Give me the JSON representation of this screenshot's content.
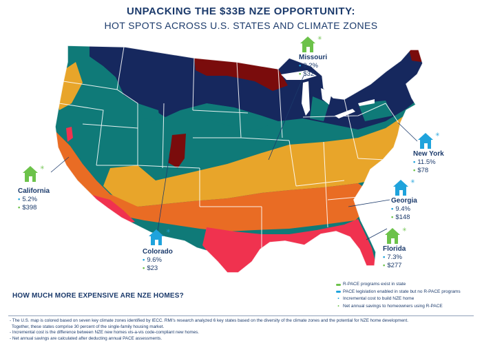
{
  "header": {
    "title": "UNPACKING THE $33B NZE OPPORTUNITY:",
    "subtitle": "HOT SPOTS ACROSS U.S. STATES AND CLIMATE ZONES"
  },
  "colors": {
    "zone_very_cold": "#16285e",
    "zone_subarctic": "#7a0c0c",
    "zone_cold": "#0f7a78",
    "zone_mixed": "#e8a52a",
    "zone_warm": "#e96c24",
    "zone_hot": "#f0324f",
    "r_pace_icon": "#6cc24a",
    "pace_icon": "#1fa3dc"
  },
  "states": {
    "missouri": {
      "name": "Missouri",
      "incremental_cost": "9.2%",
      "annual_savings": "$32",
      "icon": "house-icon-green"
    },
    "new_york": {
      "name": "New York",
      "incremental_cost": "11.5%",
      "annual_savings": "$78",
      "icon": "house-icon-blue"
    },
    "california": {
      "name": "California",
      "incremental_cost": "5.2%",
      "annual_savings": "$398",
      "icon": "house-icon-green"
    },
    "georgia": {
      "name": "Georgia",
      "incremental_cost": "9.4%",
      "annual_savings": "$148",
      "icon": "house-icon-blue"
    },
    "colorado": {
      "name": "Colorado",
      "incremental_cost": "9.6%",
      "annual_savings": "$23",
      "icon": "house-icon-blue"
    },
    "florida": {
      "name": "Florida",
      "incremental_cost": "7.3%",
      "annual_savings": "$277",
      "icon": "house-icon-green"
    }
  },
  "question": "HOW MUCH MORE EXPENSIVE ARE NZE HOMES?",
  "legend": {
    "r_pace": "R-PACE programs exist in state",
    "pace": "PACE legislation enabled in state but no R-PACE programs",
    "incremental": "Incremental cost to build NZE home",
    "savings": "Net annual savings to homeowners using R-PACE"
  },
  "notes": [
    "- The U.S. map is colored based on seven key climate zones identified by IECC. RMI's research analyzed 6 key states based on the diversity of the climate zones and the potential for NZE home development.",
    "  Together, these states comprise 30 percent of the single-family housing market.",
    "- Incremental cost is the difference between NZE new homes vis-a-vis code-compliant new homes.",
    "- Net annual savings are calculated after deducting annual PACE assessments."
  ]
}
